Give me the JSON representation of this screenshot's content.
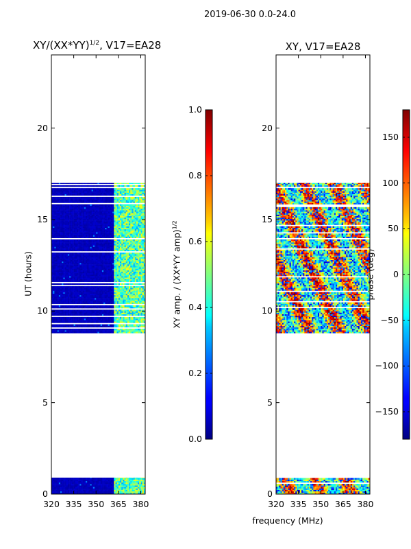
{
  "figure": {
    "suptitle": "2019-06-30 0.0-24.0",
    "xlabel": "frequency (MHz)"
  },
  "chart_data": [
    {
      "type": "heatmap",
      "title": "XY/(XX*YY)",
      "title_exp": "1/2",
      "title_suffix": ", V17=EA28",
      "xlabel": "",
      "ylabel": "UT (hours)",
      "xlim": [
        320,
        383
      ],
      "ylim": [
        0,
        24
      ],
      "xticks": [
        320,
        335,
        350,
        365,
        380
      ],
      "yticks": [
        0,
        5,
        10,
        15,
        20
      ],
      "colorbar": {
        "label": "XY amp. / (XX*YY amp)",
        "label_exp": "1/2",
        "range": [
          0.0,
          1.0
        ],
        "ticks": [
          "0.0",
          "0.2",
          "0.4",
          "0.6",
          "0.8",
          "1.0"
        ],
        "colormap": "jet"
      },
      "data_time_ranges_hours": [
        [
          8.8,
          17.0
        ],
        [
          0.0,
          0.9
        ]
      ],
      "dominant_pattern": "low amplitude (~0.05) for 320–362 MHz; mixed 0.3–0.6 for 363–383 MHz"
    },
    {
      "type": "heatmap",
      "title": "XY, V17=EA28",
      "xlabel": "",
      "ylabel": "",
      "xlim": [
        320,
        383
      ],
      "ylim": [
        0,
        24
      ],
      "xticks": [
        320,
        335,
        350,
        365,
        380
      ],
      "yticks": [
        0,
        5,
        10,
        15,
        20
      ],
      "colorbar": {
        "label": "phase (deg)",
        "range": [
          -180,
          180
        ],
        "ticks": [
          "−150",
          "−100",
          "−50",
          "0",
          "50",
          "100",
          "150"
        ],
        "tick_values": [
          -150,
          -100,
          -50,
          0,
          50,
          100,
          150
        ],
        "colormap": "jet"
      },
      "data_time_ranges_hours": [
        [
          8.8,
          17.0
        ],
        [
          0.0,
          0.9
        ]
      ],
      "dominant_pattern": "noisy phase, mostly red/orange/yellow with blue streaks"
    }
  ]
}
